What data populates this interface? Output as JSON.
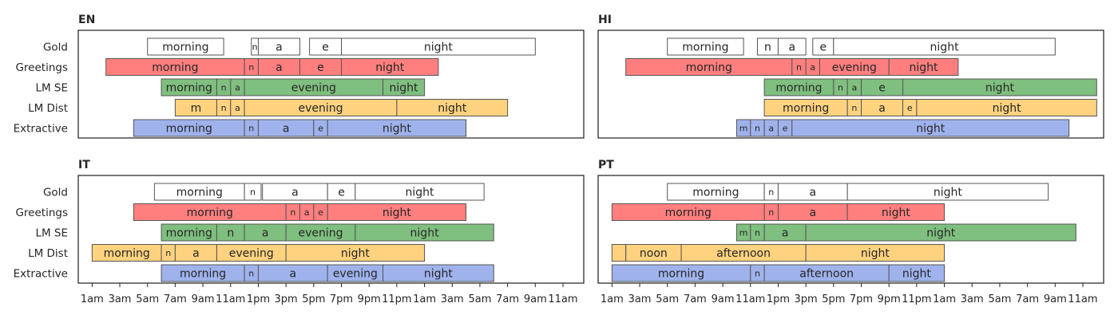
{
  "chart_data": {
    "type": "timeline",
    "x_unit": "hours since 1am",
    "xlim": [
      -1,
      35.5
    ],
    "x_ticks": [
      "1am",
      "3am",
      "5am",
      "7am",
      "9am",
      "11am",
      "1pm",
      "3pm",
      "5pm",
      "7pm",
      "9pm",
      "11pm",
      "1am",
      "3am",
      "5am",
      "7am",
      "9am",
      "11am"
    ],
    "rows": [
      "Gold",
      "Greetings",
      "LM SE",
      "LM Dist",
      "Extractive"
    ],
    "colors": {
      "Gold": "#ffffff",
      "Greetings": "#ff7f7f",
      "LM SE": "#7fbf7f",
      "LM Dist": "#ffd27f",
      "Extractive": "#9fb2ec"
    },
    "panels": [
      {
        "title": "EN",
        "rows": {
          "Gold": [
            {
              "start": 4.0,
              "end": 9.5,
              "label": "morning"
            },
            {
              "start": 11.5,
              "end": 12.0,
              "label": "n"
            },
            {
              "start": 12.0,
              "end": 15.0,
              "label": "a"
            },
            {
              "start": 15.7,
              "end": 18.0,
              "label": "e"
            },
            {
              "start": 18.0,
              "end": 32.0,
              "label": "night"
            }
          ],
          "Greetings": [
            {
              "start": 1.0,
              "end": 11.0,
              "label": "morning"
            },
            {
              "start": 11.0,
              "end": 12.0,
              "label": "n"
            },
            {
              "start": 12.0,
              "end": 15.0,
              "label": "a"
            },
            {
              "start": 15.0,
              "end": 18.0,
              "label": "e"
            },
            {
              "start": 18.0,
              "end": 25.0,
              "label": "night"
            }
          ],
          "LM SE": [
            {
              "start": 5.0,
              "end": 9.0,
              "label": "morning"
            },
            {
              "start": 9.0,
              "end": 10.0,
              "label": "n"
            },
            {
              "start": 10.0,
              "end": 11.0,
              "label": "a"
            },
            {
              "start": 11.0,
              "end": 21.0,
              "label": "evening"
            },
            {
              "start": 21.0,
              "end": 24.0,
              "label": "night"
            }
          ],
          "LM Dist": [
            {
              "start": 6.0,
              "end": 9.0,
              "label": "m"
            },
            {
              "start": 9.0,
              "end": 10.0,
              "label": "n"
            },
            {
              "start": 10.0,
              "end": 11.0,
              "label": "a"
            },
            {
              "start": 11.0,
              "end": 22.0,
              "label": "evening"
            },
            {
              "start": 22.0,
              "end": 30.0,
              "label": "night"
            }
          ],
          "Extractive": [
            {
              "start": 3.0,
              "end": 11.0,
              "label": "morning"
            },
            {
              "start": 11.0,
              "end": 12.0,
              "label": "n"
            },
            {
              "start": 12.0,
              "end": 16.0,
              "label": "a"
            },
            {
              "start": 16.0,
              "end": 17.0,
              "label": "e"
            },
            {
              "start": 17.0,
              "end": 27.0,
              "label": "night"
            }
          ]
        }
      },
      {
        "title": "HI",
        "rows": {
          "Gold": [
            {
              "start": 4.0,
              "end": 9.5,
              "label": "morning"
            },
            {
              "start": 10.5,
              "end": 12.0,
              "label": "n"
            },
            {
              "start": 12.0,
              "end": 14.0,
              "label": "a"
            },
            {
              "start": 14.5,
              "end": 16.0,
              "label": "e"
            },
            {
              "start": 16.0,
              "end": 32.0,
              "label": "night"
            }
          ],
          "Greetings": [
            {
              "start": 1.0,
              "end": 13.0,
              "label": "morning"
            },
            {
              "start": 13.0,
              "end": 14.0,
              "label": "n"
            },
            {
              "start": 14.0,
              "end": 15.0,
              "label": "a"
            },
            {
              "start": 15.0,
              "end": 20.0,
              "label": "evening"
            },
            {
              "start": 20.0,
              "end": 25.0,
              "label": "night"
            }
          ],
          "LM SE": [
            {
              "start": 11.0,
              "end": 16.0,
              "label": "morning"
            },
            {
              "start": 16.0,
              "end": 17.0,
              "label": "n"
            },
            {
              "start": 17.0,
              "end": 18.0,
              "label": "a"
            },
            {
              "start": 18.0,
              "end": 21.0,
              "label": "e"
            },
            {
              "start": 21.0,
              "end": 35.0,
              "label": "night"
            }
          ],
          "LM Dist": [
            {
              "start": 11.0,
              "end": 17.0,
              "label": "morning"
            },
            {
              "start": 17.0,
              "end": 18.0,
              "label": "n"
            },
            {
              "start": 18.0,
              "end": 21.0,
              "label": "a"
            },
            {
              "start": 21.0,
              "end": 22.0,
              "label": "e"
            },
            {
              "start": 22.0,
              "end": 35.0,
              "label": "night"
            }
          ],
          "Extractive": [
            {
              "start": 9.0,
              "end": 10.0,
              "label": "m"
            },
            {
              "start": 10.0,
              "end": 11.0,
              "label": "n"
            },
            {
              "start": 11.0,
              "end": 12.0,
              "label": "a"
            },
            {
              "start": 12.0,
              "end": 13.0,
              "label": "e"
            },
            {
              "start": 13.0,
              "end": 33.0,
              "label": "night"
            }
          ]
        }
      },
      {
        "title": "IT",
        "rows": {
          "Gold": [
            {
              "start": 4.5,
              "end": 11.0,
              "label": "morning"
            },
            {
              "start": 11.0,
              "end": 12.2,
              "label": "n"
            },
            {
              "start": 12.3,
              "end": 17.0,
              "label": "a"
            },
            {
              "start": 17.0,
              "end": 19.0,
              "label": "e"
            },
            {
              "start": 19.0,
              "end": 28.3,
              "label": "night"
            }
          ],
          "Greetings": [
            {
              "start": 3.0,
              "end": 14.0,
              "label": "morning"
            },
            {
              "start": 14.0,
              "end": 15.0,
              "label": "n"
            },
            {
              "start": 15.0,
              "end": 16.0,
              "label": "a"
            },
            {
              "start": 16.0,
              "end": 17.0,
              "label": "e"
            },
            {
              "start": 17.0,
              "end": 27.0,
              "label": "night"
            }
          ],
          "LM SE": [
            {
              "start": 5.0,
              "end": 9.0,
              "label": "morning"
            },
            {
              "start": 9.0,
              "end": 11.0,
              "label": "n"
            },
            {
              "start": 11.0,
              "end": 14.0,
              "label": "a"
            },
            {
              "start": 14.0,
              "end": 19.0,
              "label": "evening"
            },
            {
              "start": 19.0,
              "end": 29.0,
              "label": "night"
            }
          ],
          "LM Dist": [
            {
              "start": 0.0,
              "end": 5.0,
              "label": "morning"
            },
            {
              "start": 5.0,
              "end": 6.0,
              "label": "n"
            },
            {
              "start": 6.0,
              "end": 9.0,
              "label": "a"
            },
            {
              "start": 9.0,
              "end": 14.0,
              "label": "evening"
            },
            {
              "start": 14.0,
              "end": 24.0,
              "label": "night"
            }
          ],
          "Extractive": [
            {
              "start": 5.0,
              "end": 11.0,
              "label": "morning"
            },
            {
              "start": 11.0,
              "end": 12.0,
              "label": "n"
            },
            {
              "start": 12.0,
              "end": 17.0,
              "label": "a"
            },
            {
              "start": 17.0,
              "end": 21.0,
              "label": "evening"
            },
            {
              "start": 21.0,
              "end": 29.0,
              "label": "night"
            }
          ]
        }
      },
      {
        "title": "PT",
        "rows": {
          "Gold": [
            {
              "start": 4.0,
              "end": 11.0,
              "label": "morning"
            },
            {
              "start": 11.0,
              "end": 12.0,
              "label": "n"
            },
            {
              "start": 12.0,
              "end": 17.0,
              "label": "a"
            },
            {
              "start": 17.0,
              "end": 31.5,
              "label": "night"
            }
          ],
          "Greetings": [
            {
              "start": 0.0,
              "end": 11.0,
              "label": "morning"
            },
            {
              "start": 11.0,
              "end": 12.0,
              "label": "n"
            },
            {
              "start": 12.0,
              "end": 17.0,
              "label": "a"
            },
            {
              "start": 17.0,
              "end": 24.0,
              "label": "night"
            }
          ],
          "LM SE": [
            {
              "start": 9.0,
              "end": 10.0,
              "label": "m"
            },
            {
              "start": 10.0,
              "end": 11.0,
              "label": "n"
            },
            {
              "start": 11.0,
              "end": 14.0,
              "label": "a"
            },
            {
              "start": 14.0,
              "end": 33.5,
              "label": "night"
            }
          ],
          "LM Dist": [
            {
              "start": 0.0,
              "end": 1.0,
              "label": ""
            },
            {
              "start": 1.0,
              "end": 5.0,
              "label": "noon"
            },
            {
              "start": 5.0,
              "end": 14.0,
              "label": "afternoon"
            },
            {
              "start": 14.0,
              "end": 24.0,
              "label": "night"
            }
          ],
          "Extractive": [
            {
              "start": 0.0,
              "end": 10.0,
              "label": "morning"
            },
            {
              "start": 10.0,
              "end": 11.0,
              "label": "n"
            },
            {
              "start": 11.0,
              "end": 20.0,
              "label": "afternoon"
            },
            {
              "start": 20.0,
              "end": 24.0,
              "label": "night"
            }
          ]
        }
      }
    ]
  }
}
